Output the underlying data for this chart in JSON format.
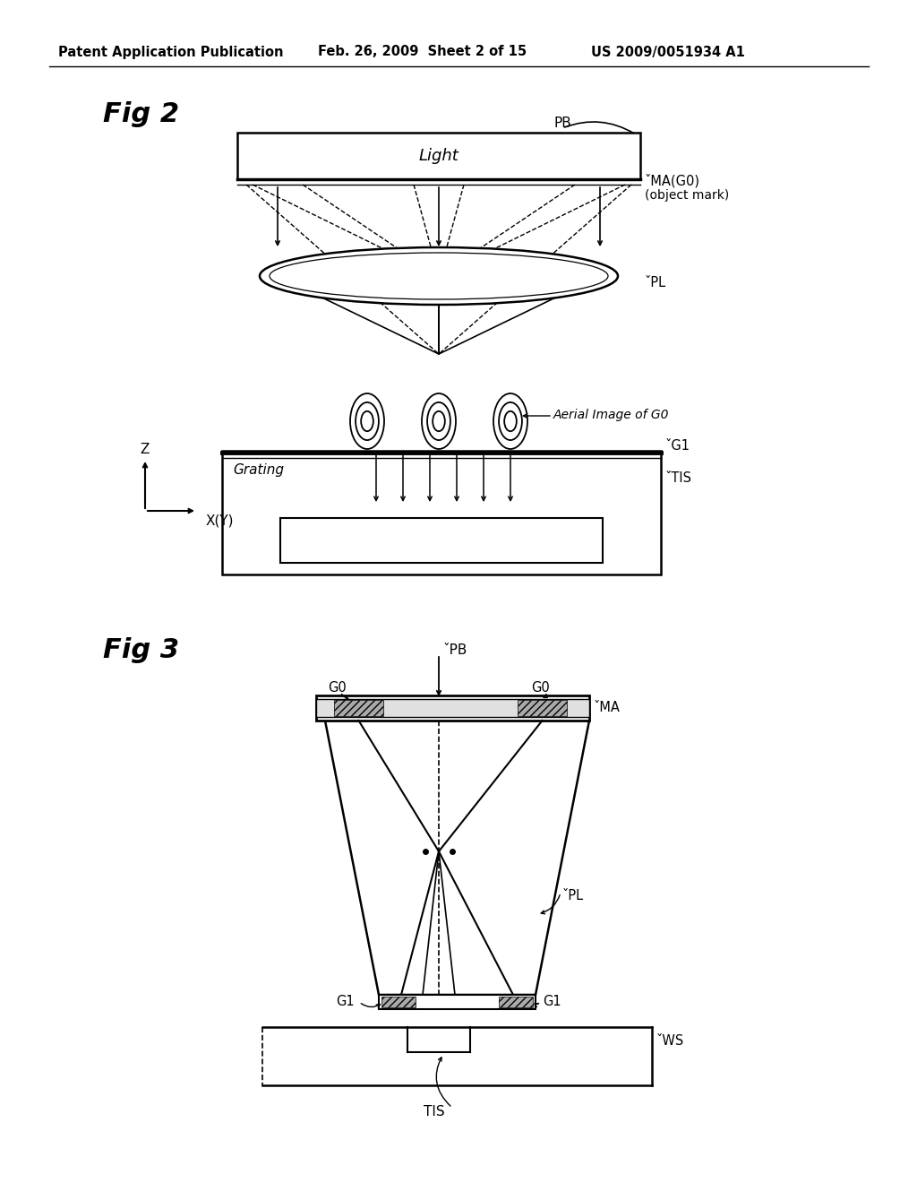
{
  "bg_color": "#ffffff",
  "header_text": "Patent Application Publication",
  "header_date": "Feb. 26, 2009  Sheet 2 of 15",
  "header_patent": "US 2009/0051934 A1",
  "fig2_label": "Fig 2",
  "fig3_label": "Fig 3",
  "line_color": "#000000",
  "text_color": "#000000"
}
